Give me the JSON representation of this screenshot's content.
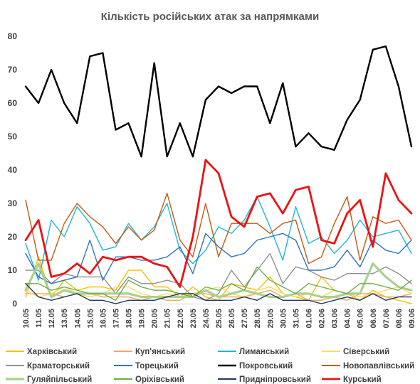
{
  "chart_data": {
    "type": "line",
    "title": "Кількість російських атак за напрямками",
    "xlabel": "",
    "ylabel": "",
    "ylim": [
      0,
      80
    ],
    "yticks": [
      0,
      10,
      20,
      30,
      40,
      50,
      60,
      70,
      80
    ],
    "grid": false,
    "legend_placement": "bottom",
    "categories": [
      "10.05",
      "11.05",
      "12.05",
      "13.05",
      "14.05",
      "15.05",
      "16.05",
      "17.05",
      "18.05",
      "19.05",
      "20.05",
      "21.05",
      "22.05",
      "23.05",
      "24.05",
      "25.05",
      "26.05",
      "27.05",
      "28.05",
      "29.05",
      "30.05",
      "31.05",
      "01.06",
      "02.06",
      "03.06",
      "04.06",
      "05.06",
      "06.06",
      "07.06",
      "08.06",
      "09.06"
    ],
    "series": [
      {
        "name": "Харківський",
        "color": "#F2C200",
        "width": 1.4,
        "values": [
          2,
          14,
          2,
          7,
          4,
          5,
          5,
          4,
          10,
          10,
          5,
          5,
          2,
          5,
          2,
          1,
          6,
          5,
          4,
          8,
          3,
          2,
          1,
          8,
          4,
          3,
          1,
          4,
          2,
          1,
          0
        ]
      },
      {
        "name": "Куп'янський",
        "color": "#F4A463",
        "width": 1.4,
        "values": [
          3,
          3,
          3,
          2,
          3,
          3,
          2,
          2,
          2,
          1,
          2,
          1,
          1,
          3,
          3,
          2,
          2,
          2,
          3,
          4,
          2,
          3,
          1,
          1,
          2,
          1,
          3,
          3,
          2,
          2,
          3
        ]
      },
      {
        "name": "Лиманський",
        "color": "#1FB4DA",
        "width": 1.4,
        "values": [
          18,
          7,
          25,
          20,
          29,
          24,
          16,
          17,
          24,
          19,
          23,
          30,
          16,
          12,
          16,
          23,
          21,
          25,
          32,
          23,
          13,
          29,
          18,
          20,
          15,
          19,
          25,
          20,
          21,
          22,
          15
        ]
      },
      {
        "name": "Сіверський",
        "color": "#FFD966",
        "width": 1.4,
        "values": [
          4,
          2,
          3,
          5,
          3,
          2,
          3,
          5,
          5,
          3,
          2,
          3,
          2,
          3,
          4,
          5,
          3,
          2,
          4,
          5,
          3,
          2,
          3,
          2,
          4,
          3,
          2,
          3,
          4,
          5,
          3
        ]
      },
      {
        "name": "Краматорський",
        "color": "#909090",
        "width": 1.4,
        "values": [
          10,
          10,
          6,
          9,
          8,
          8,
          8,
          3,
          8,
          6,
          6,
          7,
          6,
          2,
          1,
          3,
          10,
          5,
          10,
          15,
          6,
          11,
          10,
          8,
          7,
          9,
          9,
          9,
          11,
          9,
          6
        ]
      },
      {
        "name": "Торецький",
        "color": "#2E75B6",
        "width": 1.4,
        "values": [
          15,
          8,
          6,
          7,
          8,
          19,
          7,
          14,
          14,
          13,
          13,
          14,
          17,
          9,
          21,
          17,
          14,
          15,
          19,
          20,
          21,
          19,
          10,
          10,
          11,
          16,
          11,
          19,
          16,
          15,
          19
        ]
      },
      {
        "name": "Покровський",
        "color": "#000000",
        "width": 2.4,
        "values": [
          65,
          60,
          70,
          60,
          54,
          74,
          75,
          52,
          54,
          44,
          72,
          44,
          54,
          44,
          61,
          65,
          63,
          65,
          65,
          54,
          66,
          47,
          51,
          47,
          46,
          55,
          61,
          76,
          77,
          65,
          47
        ]
      },
      {
        "name": "Новопавлівський",
        "color": "#C55A11",
        "width": 1.4,
        "values": [
          31,
          13,
          13,
          24,
          30,
          26,
          23,
          18,
          23,
          19,
          22,
          33,
          19,
          14,
          30,
          14,
          24,
          24,
          24,
          21,
          24,
          25,
          12,
          14,
          24,
          32,
          13,
          26,
          24,
          25,
          19
        ]
      },
      {
        "name": "Гуляйпільський",
        "color": "#A9D18E",
        "width": 3.2,
        "values": [
          4,
          12,
          2,
          4,
          3,
          3,
          3,
          3,
          3,
          2,
          2,
          2,
          2,
          2,
          4,
          2,
          3,
          4,
          3,
          2,
          2,
          3,
          3,
          2,
          2,
          3,
          3,
          12,
          8,
          5,
          4
        ]
      },
      {
        "name": "Оріхівський",
        "color": "#70AD47",
        "width": 1.4,
        "values": [
          6,
          6,
          4,
          5,
          4,
          3,
          3,
          1,
          7,
          5,
          4,
          4,
          3,
          2,
          5,
          4,
          6,
          4,
          11,
          7,
          5,
          3,
          6,
          5,
          4,
          3,
          6,
          6,
          5,
          4,
          7
        ]
      },
      {
        "name": "Придніпровський",
        "color": "#1F3864",
        "width": 1.4,
        "values": [
          6,
          2,
          1,
          2,
          3,
          1,
          1,
          0,
          1,
          1,
          1,
          2,
          3,
          3,
          1,
          1,
          1,
          2,
          1,
          3,
          1,
          1,
          1,
          0,
          1,
          2,
          1,
          3,
          1,
          2,
          2
        ]
      },
      {
        "name": "Курський",
        "color": "#EE1111",
        "width": 2.8,
        "values": [
          19,
          25,
          8,
          9,
          12,
          9,
          14,
          13,
          14,
          14,
          12,
          11,
          5,
          20,
          43,
          39,
          26,
          23,
          32,
          33,
          27,
          34,
          35,
          19,
          18,
          27,
          31,
          17,
          39,
          31,
          27
        ]
      }
    ]
  }
}
